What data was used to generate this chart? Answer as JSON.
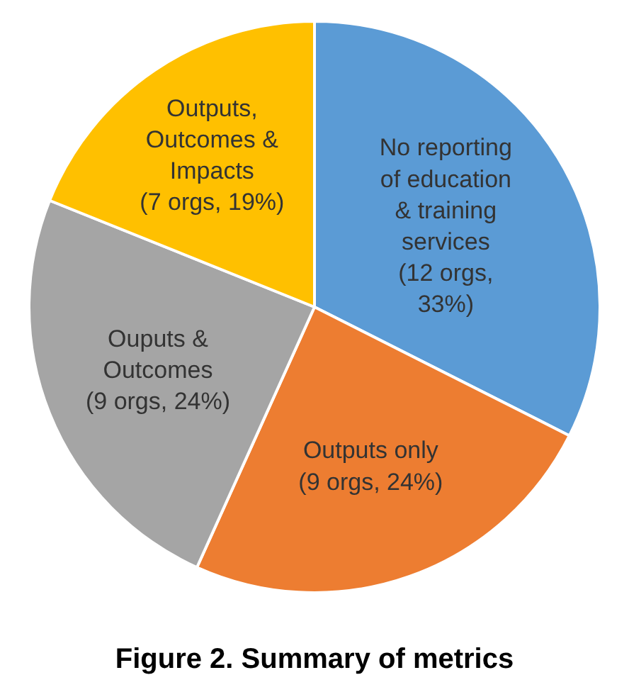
{
  "chart_data": {
    "type": "pie",
    "title": "Figure 2. Summary of metrics",
    "categories": [
      "No reporting of education & training services",
      "Outputs only",
      "Ouputs & Outcomes",
      "Outputs, Outcomes & Impacts"
    ],
    "values": [
      12,
      9,
      9,
      7
    ],
    "value_labels": [
      "(12 orgs, 33%)",
      "(9 orgs, 24%)",
      "(9 orgs, 24%)",
      "(7 orgs, 19%)"
    ],
    "colors": [
      "#5b9bd5",
      "#ed7d31",
      "#a5a5a5",
      "#ffc000"
    ],
    "legend": false
  }
}
